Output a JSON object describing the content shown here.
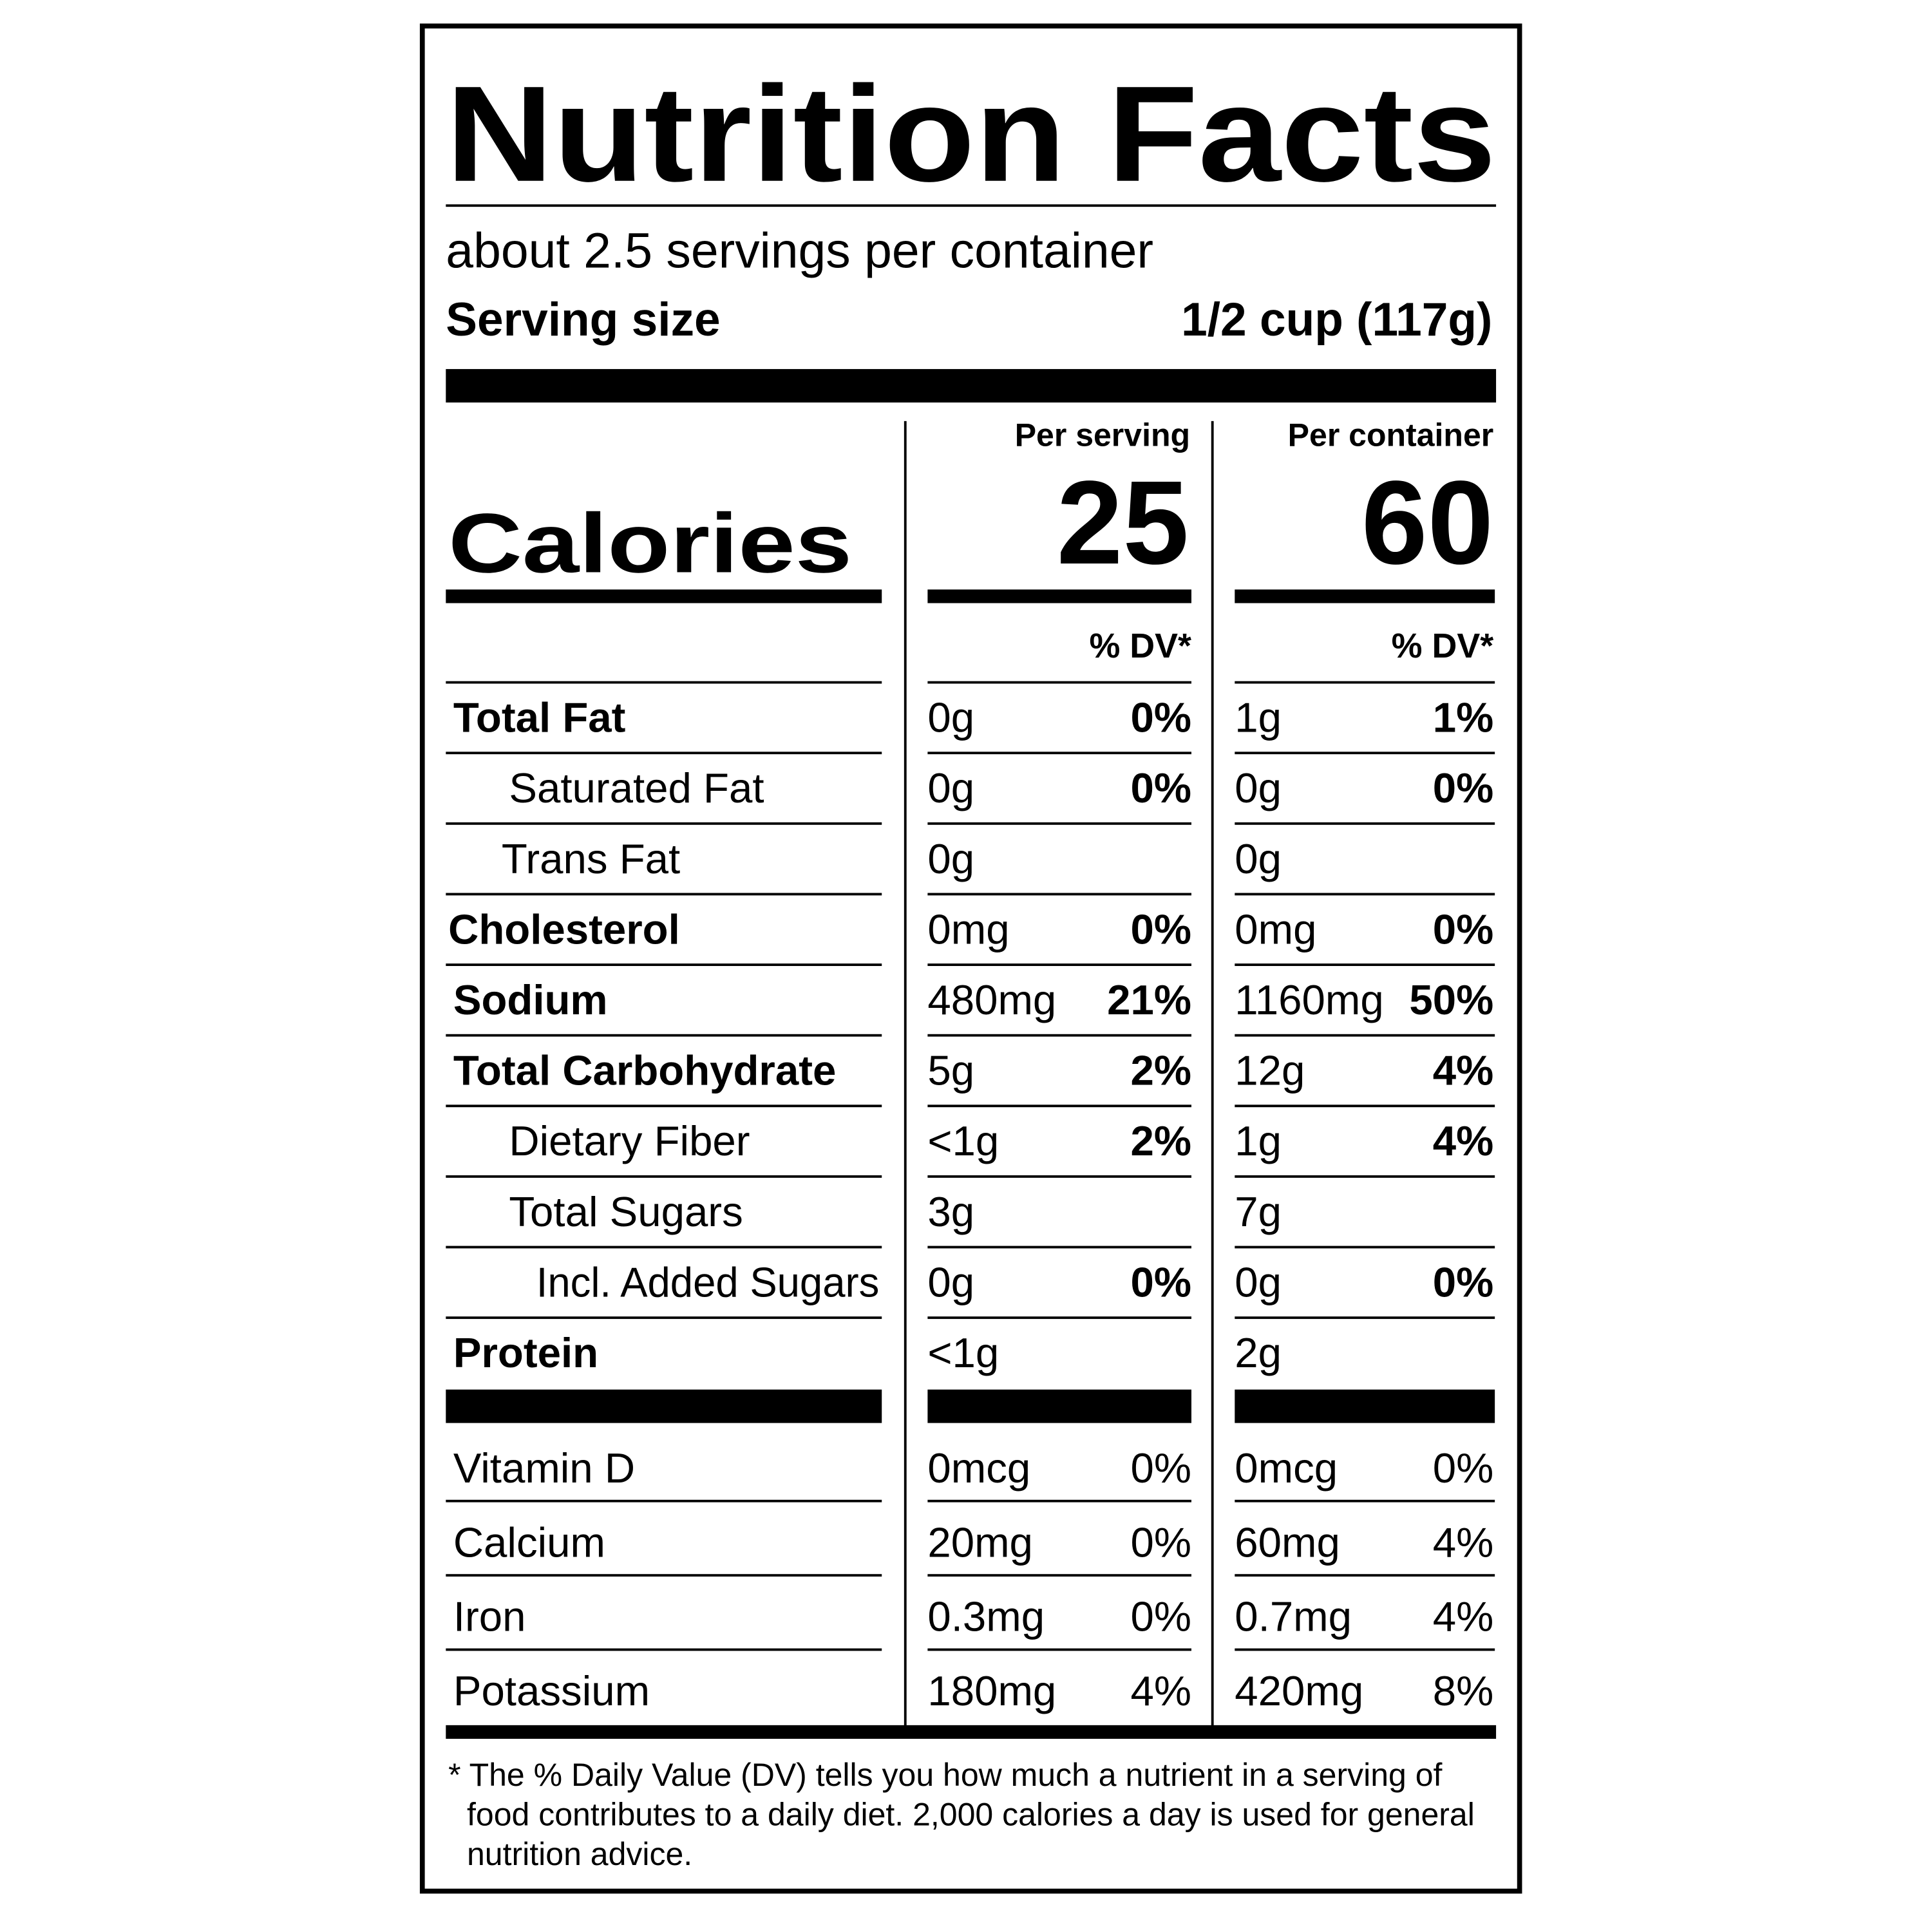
{
  "header": {
    "title": "Nutrition Facts",
    "servings": "about 2.5 servings per container",
    "serving_size_label": "Serving size",
    "serving_size_value": "1/2 cup (117g)"
  },
  "columns": [
    "Per serving",
    "Per container"
  ],
  "calories": {
    "label": "Calories",
    "per_serving": "25",
    "per_container": "60"
  },
  "dv_headers": [
    "% DV*",
    "% DV*"
  ],
  "nutrients": [
    {
      "name": "Total Fat",
      "serving_amount": "0g",
      "serving_dv": "0%",
      "container_amount": "1g",
      "container_dv": "1%"
    },
    {
      "name": "Saturated Fat",
      "serving_amount": "0g",
      "serving_dv": "0%",
      "container_amount": "0g",
      "container_dv": "0%"
    },
    {
      "name": "Trans Fat",
      "serving_amount": "0g",
      "container_amount": "0g"
    },
    {
      "name": "Cholesterol",
      "serving_amount": "0mg",
      "serving_dv": "0%",
      "container_amount": "0mg",
      "container_dv": "0%"
    },
    {
      "name": "Sodium",
      "serving_amount": "480mg",
      "serving_dv": "21%",
      "container_amount": "1160mg",
      "container_dv": "50%"
    },
    {
      "name": "Total Carbohydrate",
      "serving_amount": "5g",
      "serving_dv": "2%",
      "container_amount": "12g",
      "container_dv": "4%"
    },
    {
      "name": "Dietary Fiber",
      "serving_amount": "<1g",
      "serving_dv": "2%",
      "container_amount": "1g",
      "container_dv": "4%"
    },
    {
      "name": "Total Sugars",
      "serving_amount": "3g",
      "container_amount": "7g"
    },
    {
      "name": "Incl. Added Sugars",
      "serving_amount": "0g",
      "serving_dv": "0%",
      "container_amount": "0g",
      "container_dv": "0%"
    },
    {
      "name": "Protein",
      "serving_amount": "<1g",
      "container_amount": "2g"
    }
  ],
  "vitamins": [
    {
      "name": "Vitamin D",
      "serving_amount": "0mcg",
      "serving_dv": "0%",
      "container_amount": "0mcg",
      "container_dv": "0%"
    },
    {
      "name": "Calcium",
      "serving_amount": "20mg",
      "serving_dv": "0%",
      "container_amount": "60mg",
      "container_dv": "4%"
    },
    {
      "name": "Iron",
      "serving_amount": "0.3mg",
      "serving_dv": "0%",
      "container_amount": "0.7mg",
      "container_dv": "4%"
    },
    {
      "name": "Potassium",
      "serving_amount": "180mg",
      "serving_dv": "4%",
      "container_amount": "420mg",
      "container_dv": "8%"
    }
  ],
  "footnote": [
    "* The % Daily Value (DV) tells you how much a nutrient in a serving of",
    "food contributes to a daily diet. 2,000 calories a day is used for general",
    "nutrition advice."
  ]
}
